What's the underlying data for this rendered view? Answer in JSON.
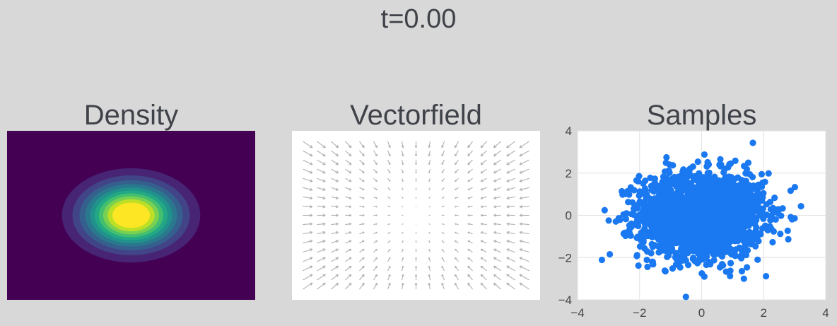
{
  "figure": {
    "title": "t=0.00",
    "background": "#d8d8d8"
  },
  "chart_data": [
    {
      "type": "heatmap",
      "title": "Density",
      "description_kind": "filled-contour",
      "distribution": {
        "mean": [
          0,
          0
        ],
        "std": [
          1,
          1
        ]
      },
      "xlim": [
        -4,
        4
      ],
      "ylim": [
        -4,
        4
      ],
      "levels": 12,
      "colormap": "viridis",
      "axes_visible": false
    },
    {
      "type": "quiver",
      "title": "Vectorfield",
      "xlim": [
        -4,
        4
      ],
      "ylim": [
        -4,
        4
      ],
      "grid_n": [
        17,
        17
      ],
      "field": "v(x,y) = -(x, y) (inward toward origin)",
      "arrow_color": "#b0b0b0",
      "axes_visible": false
    },
    {
      "type": "scatter",
      "title": "Samples",
      "xlim": [
        -4,
        4
      ],
      "ylim": [
        -4,
        4
      ],
      "xticks": [
        "−4",
        "−2",
        "0",
        "2",
        "4"
      ],
      "yticks": [
        "−4",
        "−2",
        "0",
        "2",
        "4"
      ],
      "xtick_values": [
        -4,
        -2,
        0,
        2,
        4
      ],
      "ytick_values": [
        -4,
        -2,
        0,
        2,
        4
      ],
      "grid": true,
      "marker_color": "#1a78f0",
      "n_samples": 2000,
      "distribution": {
        "mean": [
          0,
          0
        ],
        "std": [
          1,
          1
        ]
      }
    }
  ]
}
